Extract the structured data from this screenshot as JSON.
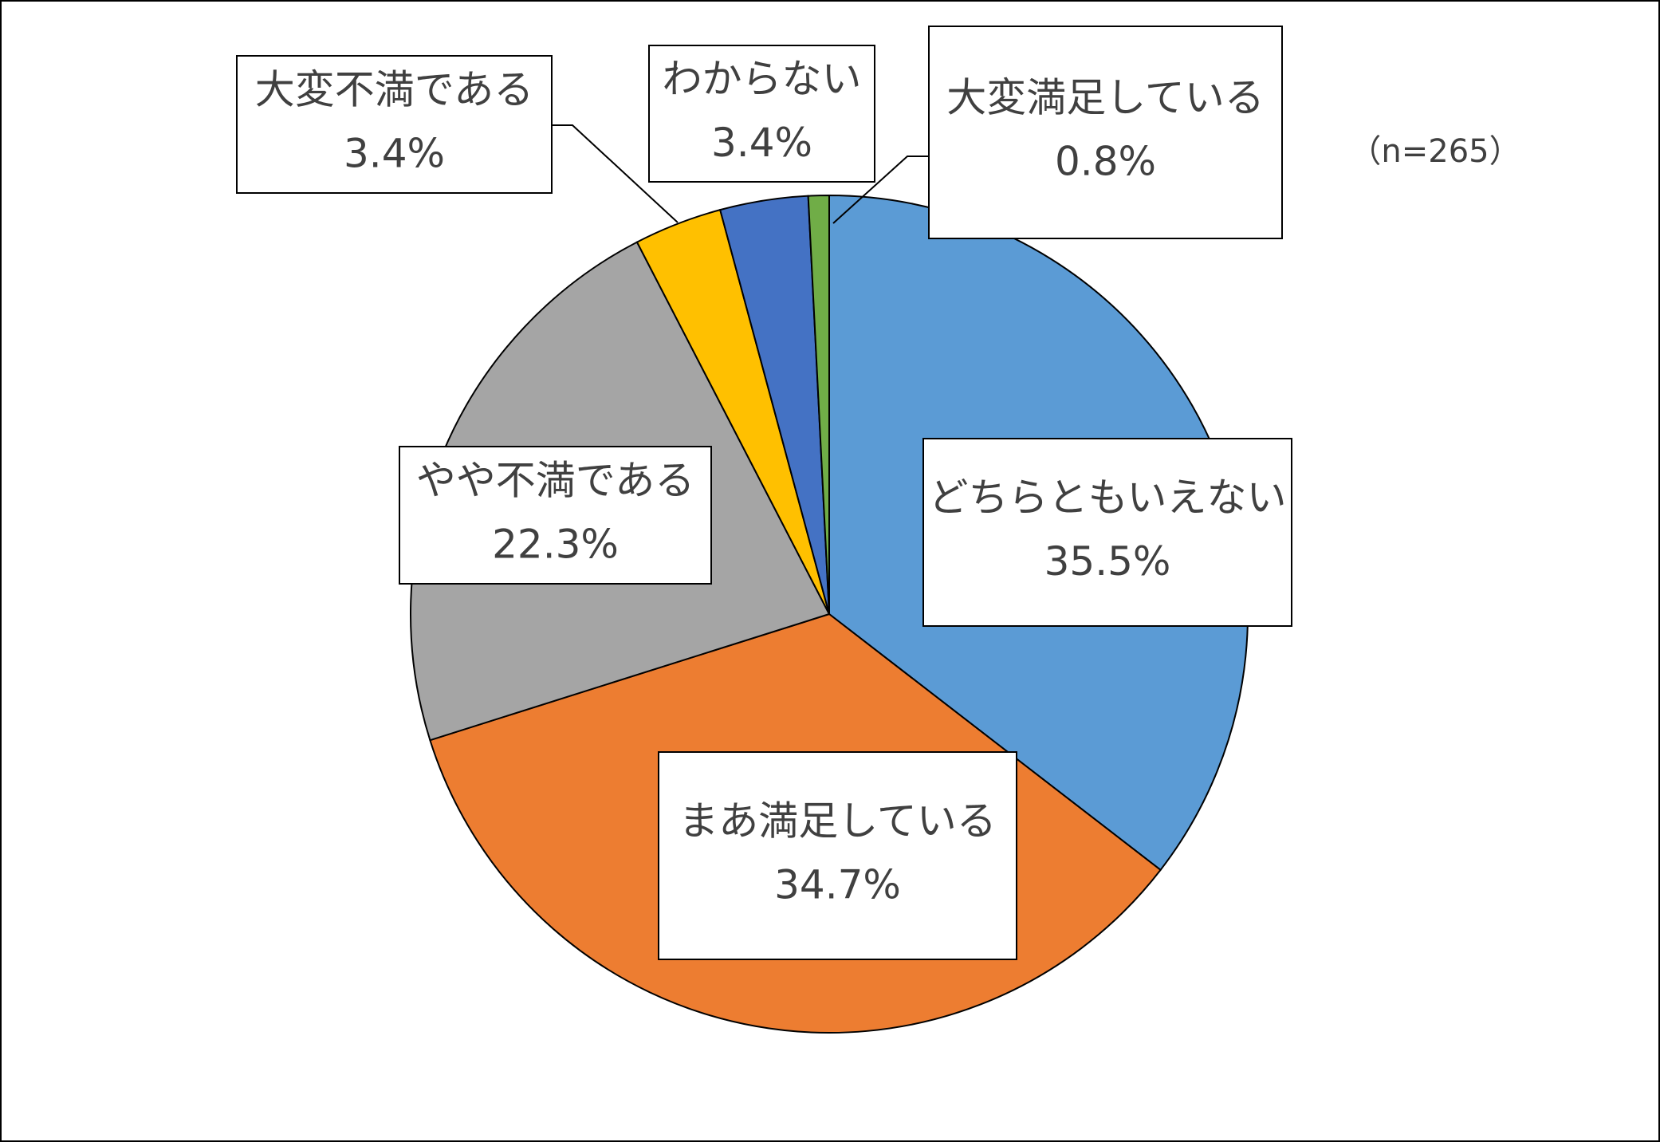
{
  "chart_data": {
    "type": "pie",
    "subtitle": "（n=265）",
    "categories": [
      "どちらともいえない",
      "まあ満足している",
      "やや不満である",
      "大変不満である",
      "わからない",
      "大変満足している"
    ],
    "values": [
      35.5,
      34.7,
      22.3,
      3.4,
      3.4,
      0.8
    ],
    "value_labels": [
      "35.5%",
      "34.7%",
      "22.3%",
      "3.4%",
      "3.4%",
      "0.8%"
    ],
    "colors": [
      "#5b9bd5",
      "#ed7d31",
      "#a5a5a5",
      "#ffc000",
      "#4472c4",
      "#70ad47"
    ]
  }
}
